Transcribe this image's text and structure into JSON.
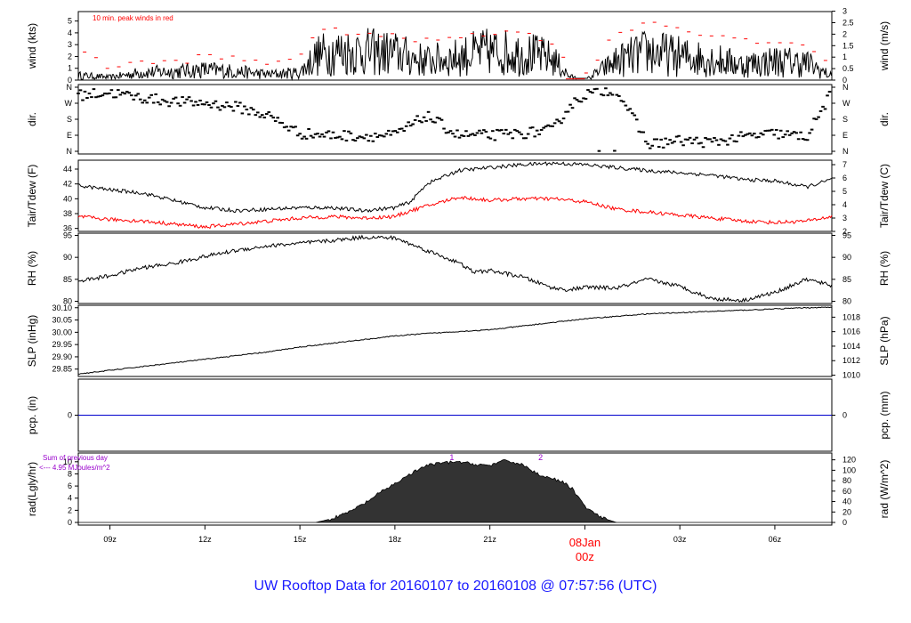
{
  "title": "UW Rooftop Data for 20160107  to  20160108 @ 07:57:56  (UTC)",
  "colors": {
    "primary": "#000000",
    "dewpoint": "#ff0000",
    "peak": "#ff0000",
    "precip": "#0000cc",
    "title": "#1a1aff",
    "radnote": "#9900cc",
    "date": "#ff0000"
  },
  "chart_data": [
    {
      "type": "line",
      "panel": "wind",
      "ylabel_left": "wind (kts)",
      "ylabel_right": "wind (m/s)",
      "annotation": "10 min. peak winds in red",
      "left_ticks": [
        "0",
        "1",
        "2",
        "3",
        "4",
        "5"
      ],
      "right_ticks": [
        "0",
        "0.5",
        "1",
        "1.5",
        "2",
        "2.5",
        "3"
      ],
      "ylim": [
        0,
        5.8
      ],
      "x_hours": [
        8.0,
        9.0,
        10.0,
        11.0,
        12.0,
        13.0,
        14.0,
        15.0,
        15.5,
        16.0,
        17.0,
        18.0,
        19.0,
        20.0,
        20.5,
        21.0,
        22.0,
        22.5,
        23.0,
        23.5,
        24.0,
        25.0,
        26.0,
        27.0,
        28.0,
        29.0,
        30.0,
        31.0,
        31.8
      ],
      "y_knots": [
        0.5,
        0.3,
        0.8,
        0.9,
        1.1,
        0.9,
        0.6,
        0.8,
        2.5,
        3.0,
        3.0,
        2.8,
        2.0,
        2.4,
        2.8,
        3.0,
        2.8,
        2.6,
        2.2,
        0.4,
        0.0,
        2.0,
        3.0,
        2.5,
        2.2,
        1.6,
        2.0,
        1.8,
        0.4
      ],
      "series": [
        {
          "name": "10 min. peak winds",
          "values": [
            3.0,
            1.0,
            1.5,
            1.5,
            2.0,
            1.8,
            1.4,
            2.2,
            3.8,
            4.2,
            4.0,
            3.6,
            3.3,
            3.8,
            4.0,
            4.0,
            4.0,
            3.8,
            3.0,
            1.0,
            0.5,
            4.0,
            5.0,
            4.4,
            3.8,
            3.2,
            3.2,
            3.0,
            1.4
          ]
        }
      ]
    },
    {
      "type": "scatter",
      "panel": "dir",
      "ylabel_left": "dir.",
      "ylabel_right": "dir.",
      "tick_labels": [
        "N",
        "E",
        "S",
        "W",
        "N"
      ],
      "x_hours": [
        8.0,
        9.0,
        10.0,
        11.0,
        12.0,
        13.0,
        14.0,
        15.0,
        16.0,
        17.0,
        18.0,
        19.0,
        20.0,
        21.0,
        22.0,
        23.0,
        23.5,
        24.0,
        25.0,
        26.0,
        27.0,
        28.0,
        29.0,
        30.0,
        31.0,
        31.8
      ],
      "direction_deg": [
        315,
        330,
        300,
        280,
        270,
        250,
        200,
        100,
        90,
        85,
        90,
        200,
        90,
        90,
        100,
        120,
        250,
        320,
        350,
        40,
        60,
        50,
        80,
        100,
        80,
        330
      ]
    },
    {
      "type": "line",
      "panel": "temperature",
      "ylabel_left": "Tair/Tdew (F)",
      "ylabel_right": "Tair/Tdew (C)",
      "left_ticks": [
        "36",
        "38",
        "40",
        "42",
        "44"
      ],
      "right_ticks": [
        "2",
        "3",
        "4",
        "5",
        "6",
        "7"
      ],
      "ylim": [
        35.6,
        45.2
      ],
      "x_hours": [
        8.0,
        9.0,
        10.0,
        11.0,
        12.0,
        13.0,
        14.0,
        15.0,
        16.0,
        17.0,
        18.0,
        18.5,
        19.0,
        20.0,
        21.0,
        22.0,
        23.0,
        24.0,
        25.0,
        26.0,
        27.0,
        28.0,
        29.0,
        30.0,
        31.0,
        31.8
      ],
      "series": [
        {
          "name": "Tair",
          "values": [
            41.8,
            41.2,
            40.8,
            39.8,
            38.8,
            38.4,
            38.6,
            38.8,
            38.8,
            38.4,
            38.8,
            39.6,
            42.0,
            43.8,
            44.2,
            44.6,
            44.8,
            44.6,
            44.2,
            43.8,
            43.5,
            43.2,
            42.6,
            42.4,
            41.6,
            42.6
          ]
        },
        {
          "name": "Tdew",
          "values": [
            37.6,
            37.2,
            37.0,
            36.6,
            36.2,
            36.6,
            37.0,
            37.4,
            37.6,
            37.4,
            37.6,
            38.4,
            39.0,
            40.2,
            39.8,
            40.0,
            40.0,
            39.6,
            38.6,
            38.2,
            37.8,
            37.4,
            37.0,
            36.8,
            37.0,
            37.6
          ]
        }
      ]
    },
    {
      "type": "line",
      "panel": "rh",
      "ylabel_left": "RH (%)",
      "ylabel_right": "RH (%)",
      "left_ticks": [
        "80",
        "85",
        "90",
        "95"
      ],
      "right_ticks": [
        "80",
        "85",
        "90",
        "95"
      ],
      "ylim": [
        79.5,
        95.5
      ],
      "x_hours": [
        8.0,
        9.0,
        10.0,
        11.0,
        12.0,
        13.0,
        14.0,
        15.0,
        16.0,
        17.0,
        18.0,
        19.0,
        20.0,
        20.5,
        21.0,
        22.0,
        23.0,
        23.5,
        24.0,
        25.0,
        26.0,
        27.0,
        28.0,
        29.0,
        30.0,
        31.0,
        31.8
      ],
      "series": [
        {
          "name": "RH",
          "values": [
            84.6,
            85.8,
            87.6,
            88.6,
            90.2,
            91.6,
            92.6,
            93.2,
            93.8,
            94.6,
            94.4,
            91.6,
            88.8,
            86.6,
            87.0,
            85.6,
            83.0,
            82.6,
            83.2,
            83.0,
            85.0,
            83.4,
            80.6,
            80.2,
            82.0,
            85.0,
            83.6
          ]
        }
      ]
    },
    {
      "type": "line",
      "panel": "slp",
      "ylabel_left": "SLP (inHg)",
      "ylabel_right": "SLP (hPa)",
      "left_ticks": [
        "29.85",
        "29.90",
        "29.95",
        "30.00",
        "30.05",
        "30.10"
      ],
      "right_ticks": [
        "1010",
        "1012",
        "1014",
        "1016",
        "1018"
      ],
      "ylim": [
        29.82,
        30.11
      ],
      "x_hours": [
        8.0,
        9.0,
        10.0,
        11.0,
        12.0,
        13.0,
        14.0,
        15.0,
        16.0,
        17.0,
        18.0,
        19.0,
        20.0,
        21.0,
        22.0,
        23.0,
        24.0,
        25.0,
        26.0,
        27.0,
        28.0,
        29.0,
        30.0,
        31.0,
        31.8
      ],
      "series": [
        {
          "name": "SLP",
          "values": [
            29.83,
            29.845,
            29.86,
            29.875,
            29.89,
            29.905,
            29.92,
            29.94,
            29.955,
            29.97,
            29.985,
            29.995,
            30.003,
            30.01,
            30.025,
            30.04,
            30.055,
            30.065,
            30.075,
            30.08,
            30.085,
            30.09,
            30.095,
            30.1,
            30.102
          ]
        }
      ]
    },
    {
      "type": "line",
      "panel": "pcp",
      "ylabel_left": "pcp. (in)",
      "ylabel_right": "pcp. (mm)",
      "left_ticks": [
        "0"
      ],
      "right_ticks": [
        "0"
      ],
      "x_hours": [
        8.0,
        31.8
      ],
      "series": [
        {
          "name": "precip",
          "values": [
            0,
            0
          ]
        }
      ]
    },
    {
      "type": "area",
      "panel": "rad",
      "ylabel_left": "rad(Lgly/hr)",
      "ylabel_right": "rad (W/m^2)",
      "note_line1": "Sum of previous day",
      "note_line2": "<--- 4.95 MJoules/m^2",
      "marker_labels": [
        "1",
        "2"
      ],
      "marker_hours": [
        19.8,
        22.6
      ],
      "left_ticks": [
        "0",
        "2",
        "4",
        "6",
        "8",
        "10"
      ],
      "right_ticks": [
        "0",
        "20",
        "40",
        "60",
        "80",
        "100",
        "120"
      ],
      "ylim": [
        0,
        11
      ],
      "x_hours": [
        8.0,
        15.5,
        16.0,
        16.5,
        17.0,
        17.5,
        18.0,
        18.5,
        19.0,
        19.5,
        20.0,
        20.5,
        21.0,
        21.5,
        22.0,
        22.5,
        23.0,
        23.3,
        23.6,
        24.0,
        24.5,
        25.0,
        31.8
      ],
      "values": [
        0,
        0,
        0.6,
        1.6,
        3.0,
        4.8,
        6.4,
        8.0,
        9.4,
        9.8,
        10.0,
        9.6,
        9.4,
        10.2,
        9.6,
        8.0,
        7.2,
        6.6,
        5.6,
        2.6,
        0.8,
        0,
        0
      ],
      "x_tick_labels": [
        "09z",
        "12z",
        "15z",
        "18z",
        "21z",
        "00z",
        "03z",
        "06z"
      ],
      "date_label": "08Jan",
      "date_sub": "00z"
    }
  ]
}
